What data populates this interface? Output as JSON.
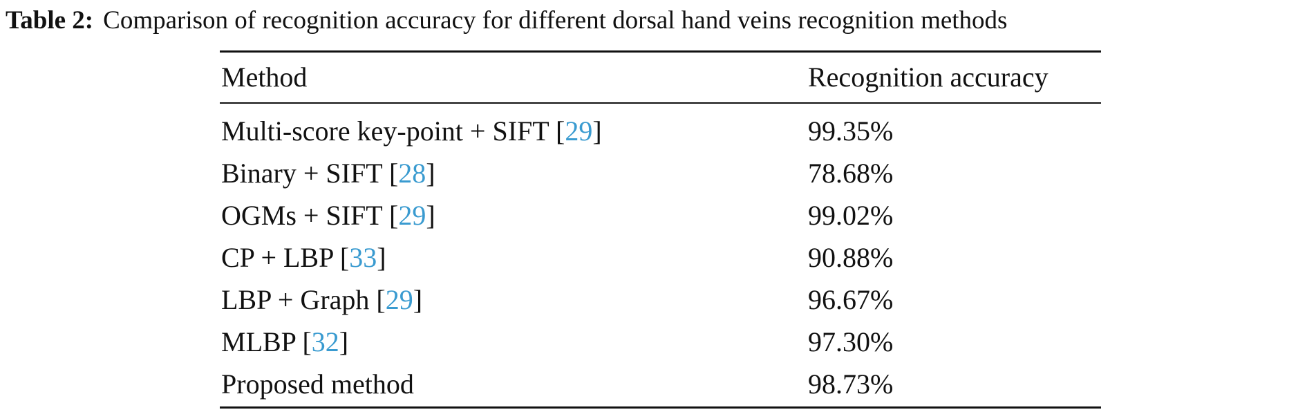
{
  "caption": {
    "label": "Table 2:",
    "text": "Comparison of recognition accuracy for different dorsal hand veins recognition methods"
  },
  "table": {
    "header": [
      "Method",
      "Recognition accuracy"
    ],
    "rows": [
      [
        [
          "Multi-score key-point + SIFT [",
          "29",
          "]"
        ],
        "99.35%"
      ],
      [
        [
          "Binary + SIFT [",
          "28",
          "]"
        ],
        "78.68%"
      ],
      [
        [
          "OGMs + SIFT [",
          "29",
          "]"
        ],
        "99.02%"
      ],
      [
        [
          "CP + LBP [",
          "33",
          "]"
        ],
        "90.88%"
      ],
      [
        [
          "LBP + Graph [",
          "29",
          "]"
        ],
        "96.67%"
      ],
      [
        [
          "MLBP [",
          "32",
          "]"
        ],
        "97.30%"
      ],
      [
        [
          "Proposed method"
        ],
        "98.73%"
      ]
    ]
  }
}
